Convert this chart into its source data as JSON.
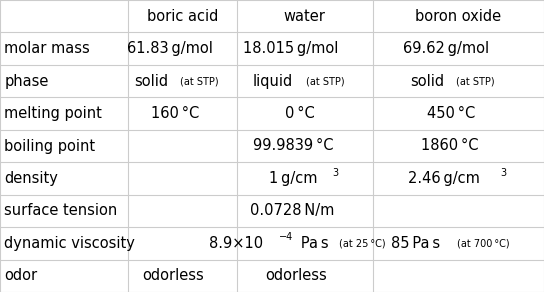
{
  "headers": [
    "",
    "boric acid",
    "water",
    "boron oxide"
  ],
  "col_bounds": [
    0.0,
    0.235,
    0.435,
    0.685,
    1.0
  ],
  "n_data_rows": 8,
  "bg_color": "#ffffff",
  "line_color": "#cccccc",
  "text_color": "#000000",
  "base_fs": 10.5,
  "small_fs": 7.0,
  "rows": [
    {
      "label": "molar mass",
      "cells": [
        [
          {
            "t": "61.83 g/mol",
            "fs": 10.5,
            "sup": false
          }
        ],
        [
          {
            "t": "18.015 g/mol",
            "fs": 10.5,
            "sup": false
          }
        ],
        [
          {
            "t": "69.62 g/mol",
            "fs": 10.5,
            "sup": false
          }
        ]
      ]
    },
    {
      "label": "phase",
      "cells": [
        [
          {
            "t": "solid",
            "fs": 10.5,
            "sup": false
          },
          {
            "t": " (at STP)",
            "fs": 7.0,
            "sup": false
          }
        ],
        [
          {
            "t": "liquid",
            "fs": 10.5,
            "sup": false
          },
          {
            "t": " (at STP)",
            "fs": 7.0,
            "sup": false
          }
        ],
        [
          {
            "t": "solid",
            "fs": 10.5,
            "sup": false
          },
          {
            "t": " (at STP)",
            "fs": 7.0,
            "sup": false
          }
        ]
      ]
    },
    {
      "label": "melting point",
      "cells": [
        [
          {
            "t": "160 °C",
            "fs": 10.5,
            "sup": false
          }
        ],
        [
          {
            "t": "0 °C",
            "fs": 10.5,
            "sup": false
          }
        ],
        [
          {
            "t": "450 °C",
            "fs": 10.5,
            "sup": false
          }
        ]
      ]
    },
    {
      "label": "boiling point",
      "cells": [
        [],
        [
          {
            "t": "99.9839 °C",
            "fs": 10.5,
            "sup": false
          }
        ],
        [
          {
            "t": "1860 °C",
            "fs": 10.5,
            "sup": false
          }
        ]
      ]
    },
    {
      "label": "density",
      "cells": [
        [],
        [
          {
            "t": "1 g/cm",
            "fs": 10.5,
            "sup": false
          },
          {
            "t": "3",
            "fs": 7.0,
            "sup": true
          }
        ],
        [
          {
            "t": "2.46 g/cm",
            "fs": 10.5,
            "sup": false
          },
          {
            "t": "3",
            "fs": 7.0,
            "sup": true
          }
        ]
      ]
    },
    {
      "label": "surface tension",
      "cells": [
        [],
        [
          {
            "t": "0.0728 N/m",
            "fs": 10.5,
            "sup": false
          }
        ],
        []
      ]
    },
    {
      "label": "dynamic viscosity",
      "cells": [
        [],
        [
          {
            "t": "8.9×10",
            "fs": 10.5,
            "sup": false
          },
          {
            "t": "−4",
            "fs": 7.0,
            "sup": true
          },
          {
            "t": " Pa s",
            "fs": 10.5,
            "sup": false
          },
          {
            "t": " (at 25 °C)",
            "fs": 7.0,
            "sup": false
          }
        ],
        [
          {
            "t": "85 Pa s",
            "fs": 10.5,
            "sup": false
          },
          {
            "t": " (at 700 °C)",
            "fs": 7.0,
            "sup": false
          }
        ]
      ]
    },
    {
      "label": "odor",
      "cells": [
        [
          {
            "t": "odorless",
            "fs": 10.5,
            "sup": false
          }
        ],
        [
          {
            "t": "odorless",
            "fs": 10.5,
            "sup": false
          }
        ],
        []
      ]
    }
  ]
}
